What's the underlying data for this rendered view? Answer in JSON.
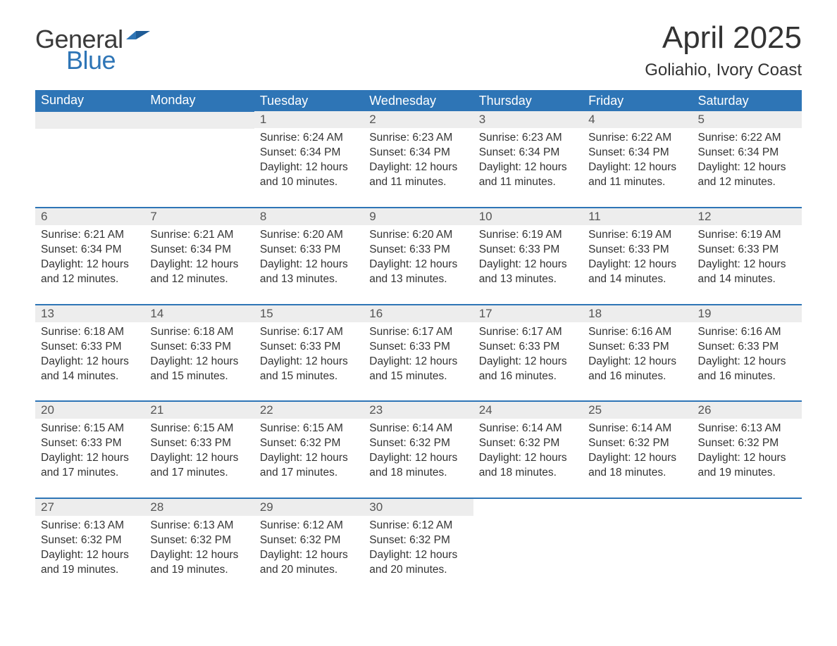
{
  "brand": {
    "general": "General",
    "blue": "Blue"
  },
  "title": "April 2025",
  "location": "Goliahio, Ivory Coast",
  "colors": {
    "accent": "#2e75b6",
    "header_bg": "#2e75b6",
    "header_text": "#ffffff",
    "daynum_bg": "#ededed",
    "text": "#333333",
    "background": "#ffffff"
  },
  "typography": {
    "title_fontsize": 44,
    "location_fontsize": 24,
    "weekday_fontsize": 18,
    "daynum_fontsize": 17,
    "body_fontsize": 15.5,
    "font_family": "Segoe UI"
  },
  "weekdays": [
    "Sunday",
    "Monday",
    "Tuesday",
    "Wednesday",
    "Thursday",
    "Friday",
    "Saturday"
  ],
  "labels": {
    "sunrise": "Sunrise",
    "sunset": "Sunset",
    "daylight": "Daylight"
  },
  "days": [
    {
      "n": 1,
      "sunrise": "6:24 AM",
      "sunset": "6:34 PM",
      "daylight": "12 hours and 10 minutes."
    },
    {
      "n": 2,
      "sunrise": "6:23 AM",
      "sunset": "6:34 PM",
      "daylight": "12 hours and 11 minutes."
    },
    {
      "n": 3,
      "sunrise": "6:23 AM",
      "sunset": "6:34 PM",
      "daylight": "12 hours and 11 minutes."
    },
    {
      "n": 4,
      "sunrise": "6:22 AM",
      "sunset": "6:34 PM",
      "daylight": "12 hours and 11 minutes."
    },
    {
      "n": 5,
      "sunrise": "6:22 AM",
      "sunset": "6:34 PM",
      "daylight": "12 hours and 12 minutes."
    },
    {
      "n": 6,
      "sunrise": "6:21 AM",
      "sunset": "6:34 PM",
      "daylight": "12 hours and 12 minutes."
    },
    {
      "n": 7,
      "sunrise": "6:21 AM",
      "sunset": "6:34 PM",
      "daylight": "12 hours and 12 minutes."
    },
    {
      "n": 8,
      "sunrise": "6:20 AM",
      "sunset": "6:33 PM",
      "daylight": "12 hours and 13 minutes."
    },
    {
      "n": 9,
      "sunrise": "6:20 AM",
      "sunset": "6:33 PM",
      "daylight": "12 hours and 13 minutes."
    },
    {
      "n": 10,
      "sunrise": "6:19 AM",
      "sunset": "6:33 PM",
      "daylight": "12 hours and 13 minutes."
    },
    {
      "n": 11,
      "sunrise": "6:19 AM",
      "sunset": "6:33 PM",
      "daylight": "12 hours and 14 minutes."
    },
    {
      "n": 12,
      "sunrise": "6:19 AM",
      "sunset": "6:33 PM",
      "daylight": "12 hours and 14 minutes."
    },
    {
      "n": 13,
      "sunrise": "6:18 AM",
      "sunset": "6:33 PM",
      "daylight": "12 hours and 14 minutes."
    },
    {
      "n": 14,
      "sunrise": "6:18 AM",
      "sunset": "6:33 PM",
      "daylight": "12 hours and 15 minutes."
    },
    {
      "n": 15,
      "sunrise": "6:17 AM",
      "sunset": "6:33 PM",
      "daylight": "12 hours and 15 minutes."
    },
    {
      "n": 16,
      "sunrise": "6:17 AM",
      "sunset": "6:33 PM",
      "daylight": "12 hours and 15 minutes."
    },
    {
      "n": 17,
      "sunrise": "6:17 AM",
      "sunset": "6:33 PM",
      "daylight": "12 hours and 16 minutes."
    },
    {
      "n": 18,
      "sunrise": "6:16 AM",
      "sunset": "6:33 PM",
      "daylight": "12 hours and 16 minutes."
    },
    {
      "n": 19,
      "sunrise": "6:16 AM",
      "sunset": "6:33 PM",
      "daylight": "12 hours and 16 minutes."
    },
    {
      "n": 20,
      "sunrise": "6:15 AM",
      "sunset": "6:33 PM",
      "daylight": "12 hours and 17 minutes."
    },
    {
      "n": 21,
      "sunrise": "6:15 AM",
      "sunset": "6:33 PM",
      "daylight": "12 hours and 17 minutes."
    },
    {
      "n": 22,
      "sunrise": "6:15 AM",
      "sunset": "6:32 PM",
      "daylight": "12 hours and 17 minutes."
    },
    {
      "n": 23,
      "sunrise": "6:14 AM",
      "sunset": "6:32 PM",
      "daylight": "12 hours and 18 minutes."
    },
    {
      "n": 24,
      "sunrise": "6:14 AM",
      "sunset": "6:32 PM",
      "daylight": "12 hours and 18 minutes."
    },
    {
      "n": 25,
      "sunrise": "6:14 AM",
      "sunset": "6:32 PM",
      "daylight": "12 hours and 18 minutes."
    },
    {
      "n": 26,
      "sunrise": "6:13 AM",
      "sunset": "6:32 PM",
      "daylight": "12 hours and 19 minutes."
    },
    {
      "n": 27,
      "sunrise": "6:13 AM",
      "sunset": "6:32 PM",
      "daylight": "12 hours and 19 minutes."
    },
    {
      "n": 28,
      "sunrise": "6:13 AM",
      "sunset": "6:32 PM",
      "daylight": "12 hours and 19 minutes."
    },
    {
      "n": 29,
      "sunrise": "6:12 AM",
      "sunset": "6:32 PM",
      "daylight": "12 hours and 20 minutes."
    },
    {
      "n": 30,
      "sunrise": "6:12 AM",
      "sunset": "6:32 PM",
      "daylight": "12 hours and 20 minutes."
    }
  ],
  "layout": {
    "first_weekday_index": 2,
    "weeks": 5,
    "columns": 7
  }
}
